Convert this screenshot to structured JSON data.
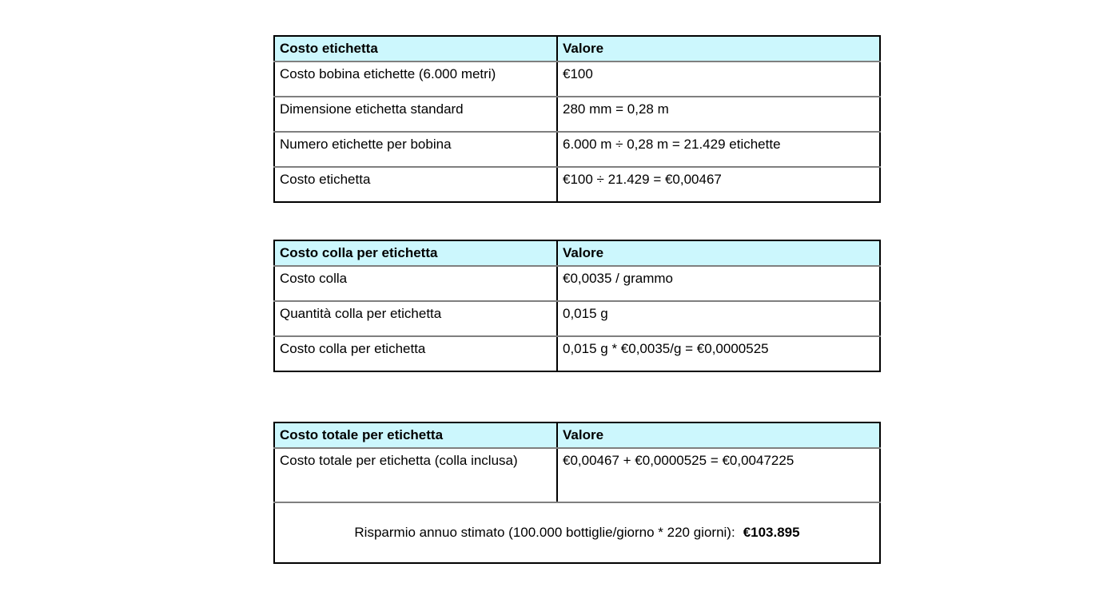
{
  "page": {
    "background": "#ffffff",
    "text_color": "#000000"
  },
  "colors": {
    "header_bg": "#ccf7fd",
    "outer_border": "#000000",
    "row_divider": "#7f7f7f"
  },
  "tables": [
    {
      "id": "costo-etichetta",
      "header": [
        "Costo etichetta",
        "Valore"
      ],
      "rows": [
        [
          "Costo bobina etichette (6.000 metri)",
          "€100"
        ],
        [
          "Dimensione etichetta standard",
          "280 mm = 0,28 m"
        ],
        [
          "Numero etichette per bobina",
          "6.000 m ÷ 0,28 m = 21.429 etichette"
        ],
        [
          "Costo etichetta",
          "€100 ÷ 21.429 = €0,00467"
        ]
      ]
    },
    {
      "id": "costo-colla-per-etichetta",
      "header": [
        "Costo colla per etichetta",
        "Valore"
      ],
      "rows": [
        [
          "Costo colla",
          "€0,0035 / grammo"
        ],
        [
          "Quantità colla per etichetta",
          "0,015 g"
        ],
        [
          "Costo colla per etichetta",
          "0,015 g * €0,0035/g = €0,0000525"
        ]
      ]
    },
    {
      "id": "costo-totale-per-etichetta",
      "header": [
        "Costo totale per etichetta",
        "Valore"
      ],
      "rows": [
        [
          "Costo totale per etichetta (colla inclusa)",
          "€0,00467 + €0,0000525 = €0,0047225"
        ]
      ],
      "summary": {
        "label": "Risparmio annuo stimato (100.000 bottiglie/giorno * 220 giorni):",
        "value": "€103.895"
      }
    }
  ]
}
